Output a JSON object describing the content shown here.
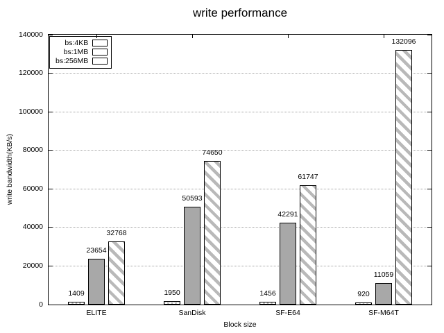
{
  "title": "write performance",
  "chart_data": {
    "type": "bar",
    "title": "write performance",
    "xlabel": "Block size",
    "ylabel": "write bandwidth(KB/s)",
    "categories": [
      "ELITE",
      "SanDisk",
      "SF-E64",
      "SF-M64T"
    ],
    "series": [
      {
        "name": "bs:4KB",
        "pattern": "crosshatch",
        "values": [
          1409,
          1950,
          1456,
          920
        ]
      },
      {
        "name": "bs:1MB",
        "pattern": "solid",
        "values": [
          23654,
          50593,
          42291,
          11059
        ]
      },
      {
        "name": "bs:256MB",
        "pattern": "stripes",
        "values": [
          32768,
          74650,
          61747,
          132096
        ]
      }
    ],
    "ylim": [
      0,
      140000
    ],
    "yticks": [
      "0",
      "20000",
      "40000",
      "60000",
      "80000",
      "100000",
      "120000",
      "140000"
    ],
    "grid": "dotted horizontal gridlines at y ticks",
    "legend_position": "top-left inside plot",
    "bar_value_labels": true
  },
  "colors": {
    "background": "#ffffff",
    "axis": "#000000",
    "text": "#000000",
    "solid_fill": "#a8a8a8",
    "pattern_stroke": "#b9b9b9",
    "grid": "#a0a0a0"
  }
}
